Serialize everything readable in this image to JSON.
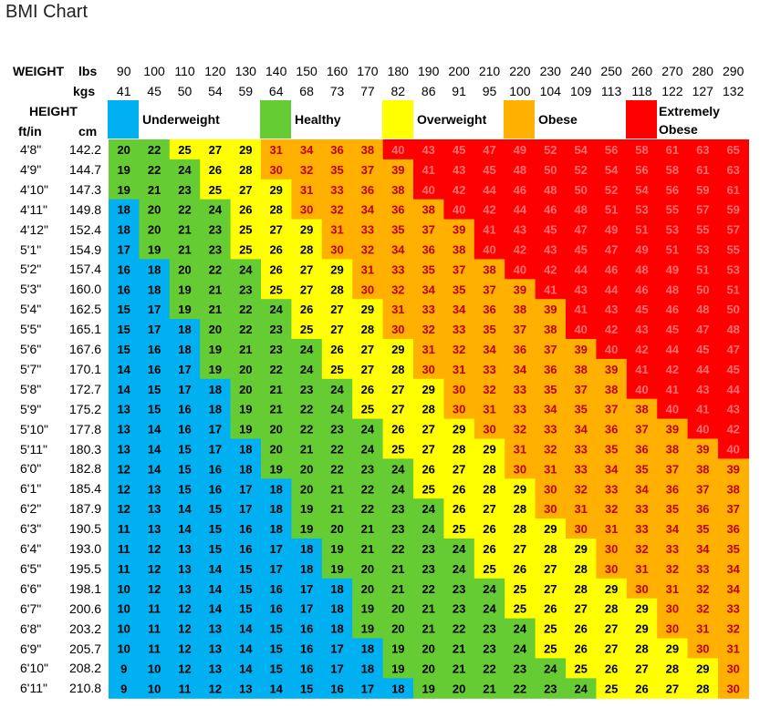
{
  "title": "BMI Chart",
  "header": {
    "weight_label": "WEIGHT",
    "lbs_label": "lbs",
    "kgs_label": "kgs",
    "height_label": "HEIGHT",
    "ftin_label": "ft/in",
    "cm_label": "cm"
  },
  "legend": [
    {
      "label": "Underweight",
      "color": "#00b0f0"
    },
    {
      "label": "Healthy",
      "color": "#66cc33"
    },
    {
      "label": "Overweight",
      "color": "#ffff00"
    },
    {
      "label": "Obese",
      "color": "#ffb000"
    },
    {
      "label": "Extremely Obese",
      "color": "#ff0000"
    }
  ],
  "chart_data": {
    "type": "table",
    "title": "BMI Chart",
    "weights_lbs": [
      "90",
      "100",
      "110",
      "120",
      "130",
      "140",
      "150",
      "160",
      "170",
      "180",
      "190",
      "200",
      "210",
      "220",
      "230",
      "240",
      "250",
      "260",
      "270",
      "280",
      "290"
    ],
    "weights_kgs": [
      "41",
      "45",
      "50",
      "54",
      "59",
      "64",
      "68",
      "73",
      "77",
      "82",
      "86",
      "91",
      "95",
      "100",
      "104",
      "109",
      "113",
      "118",
      "122",
      "127",
      "132"
    ],
    "rows": [
      {
        "ftin": "4'8\"",
        "cm": "142.2",
        "bmi": [
          20,
          22,
          25,
          27,
          29,
          31,
          34,
          36,
          38,
          40,
          43,
          45,
          47,
          49,
          52,
          54,
          56,
          58,
          61,
          63,
          65
        ]
      },
      {
        "ftin": "4'9\"",
        "cm": "144.7",
        "bmi": [
          19,
          22,
          24,
          26,
          28,
          30,
          32,
          35,
          37,
          39,
          41,
          43,
          45,
          48,
          50,
          52,
          54,
          56,
          58,
          61,
          63
        ]
      },
      {
        "ftin": "4'10\"",
        "cm": "147.3",
        "bmi": [
          19,
          21,
          23,
          25,
          27,
          29,
          31,
          33,
          36,
          38,
          40,
          42,
          44,
          46,
          48,
          50,
          52,
          54,
          56,
          59,
          61
        ]
      },
      {
        "ftin": "4'11\"",
        "cm": "149.8",
        "bmi": [
          18,
          20,
          22,
          24,
          26,
          28,
          30,
          32,
          34,
          36,
          38,
          40,
          42,
          44,
          46,
          48,
          51,
          53,
          55,
          57,
          59
        ]
      },
      {
        "ftin": "4'12\"",
        "cm": "152.4",
        "bmi": [
          18,
          20,
          21,
          23,
          25,
          27,
          29,
          31,
          33,
          35,
          37,
          39,
          41,
          43,
          45,
          47,
          49,
          51,
          53,
          55,
          57
        ]
      },
      {
        "ftin": "5'1\"",
        "cm": "154.9",
        "bmi": [
          17,
          19,
          21,
          23,
          25,
          26,
          28,
          30,
          32,
          34,
          36,
          38,
          40,
          42,
          43,
          45,
          47,
          49,
          51,
          53,
          55
        ]
      },
      {
        "ftin": "5'2\"",
        "cm": "157.4",
        "bmi": [
          16,
          18,
          20,
          22,
          24,
          26,
          27,
          29,
          31,
          33,
          35,
          37,
          38,
          40,
          42,
          44,
          46,
          48,
          49,
          51,
          53
        ]
      },
      {
        "ftin": "5'3\"",
        "cm": "160.0",
        "bmi": [
          16,
          18,
          19,
          21,
          23,
          25,
          27,
          28,
          30,
          32,
          34,
          35,
          37,
          39,
          41,
          43,
          44,
          46,
          48,
          50,
          51
        ]
      },
      {
        "ftin": "5'4\"",
        "cm": "162.5",
        "bmi": [
          15,
          17,
          19,
          21,
          22,
          24,
          26,
          27,
          29,
          31,
          33,
          34,
          36,
          38,
          39,
          41,
          43,
          45,
          46,
          48,
          50
        ]
      },
      {
        "ftin": "5'5\"",
        "cm": "165.1",
        "bmi": [
          15,
          17,
          18,
          20,
          22,
          23,
          25,
          27,
          28,
          30,
          32,
          33,
          35,
          37,
          38,
          40,
          42,
          43,
          45,
          47,
          48
        ]
      },
      {
        "ftin": "5'6\"",
        "cm": "167.6",
        "bmi": [
          15,
          16,
          18,
          19,
          21,
          23,
          24,
          26,
          27,
          29,
          31,
          32,
          34,
          36,
          37,
          39,
          40,
          42,
          44,
          45,
          47
        ]
      },
      {
        "ftin": "5'7\"",
        "cm": "170.1",
        "bmi": [
          14,
          16,
          17,
          19,
          20,
          22,
          24,
          25,
          27,
          28,
          30,
          31,
          33,
          34,
          36,
          38,
          39,
          41,
          42,
          44,
          45
        ]
      },
      {
        "ftin": "5'8\"",
        "cm": "172.7",
        "bmi": [
          14,
          15,
          17,
          18,
          20,
          21,
          23,
          24,
          26,
          27,
          29,
          30,
          32,
          33,
          35,
          37,
          38,
          40,
          41,
          43,
          44
        ]
      },
      {
        "ftin": "5'9\"",
        "cm": "175.2",
        "bmi": [
          13,
          15,
          16,
          18,
          19,
          21,
          22,
          24,
          25,
          27,
          28,
          30,
          31,
          33,
          34,
          35,
          37,
          38,
          40,
          41,
          43
        ]
      },
      {
        "ftin": "5'10\"",
        "cm": "177.8",
        "bmi": [
          13,
          14,
          16,
          17,
          19,
          20,
          22,
          23,
          24,
          26,
          27,
          29,
          30,
          32,
          33,
          34,
          36,
          37,
          39,
          40,
          42
        ]
      },
      {
        "ftin": "5'11\"",
        "cm": "180.3",
        "bmi": [
          13,
          14,
          15,
          17,
          18,
          20,
          21,
          22,
          24,
          25,
          27,
          28,
          29,
          31,
          32,
          33,
          35,
          36,
          38,
          39,
          40
        ]
      },
      {
        "ftin": "6'0\"",
        "cm": "182.8",
        "bmi": [
          12,
          14,
          15,
          16,
          18,
          19,
          20,
          22,
          23,
          24,
          26,
          27,
          28,
          30,
          31,
          33,
          34,
          35,
          37,
          38,
          39
        ]
      },
      {
        "ftin": "6'1\"",
        "cm": "185.4",
        "bmi": [
          12,
          13,
          15,
          16,
          17,
          18,
          20,
          21,
          22,
          24,
          25,
          26,
          28,
          29,
          30,
          32,
          33,
          34,
          36,
          37,
          38
        ]
      },
      {
        "ftin": "6'2\"",
        "cm": "187.9",
        "bmi": [
          12,
          13,
          14,
          15,
          17,
          18,
          19,
          21,
          22,
          23,
          24,
          26,
          27,
          28,
          30,
          31,
          32,
          33,
          35,
          36,
          37
        ]
      },
      {
        "ftin": "6'3\"",
        "cm": "190.5",
        "bmi": [
          11,
          13,
          14,
          15,
          16,
          18,
          19,
          20,
          21,
          23,
          24,
          25,
          26,
          28,
          29,
          30,
          31,
          33,
          34,
          35,
          36
        ]
      },
      {
        "ftin": "6'4\"",
        "cm": "193.0",
        "bmi": [
          11,
          12,
          13,
          15,
          16,
          17,
          18,
          19,
          21,
          22,
          23,
          24,
          26,
          27,
          28,
          29,
          30,
          32,
          33,
          34,
          35
        ]
      },
      {
        "ftin": "6'5\"",
        "cm": "195.5",
        "bmi": [
          11,
          12,
          13,
          14,
          15,
          17,
          18,
          19,
          20,
          21,
          23,
          24,
          25,
          26,
          27,
          28,
          30,
          31,
          32,
          33,
          34
        ]
      },
      {
        "ftin": "6'6\"",
        "cm": "198.1",
        "bmi": [
          10,
          12,
          13,
          14,
          15,
          16,
          17,
          18,
          20,
          21,
          22,
          23,
          24,
          25,
          27,
          28,
          29,
          30,
          31,
          32,
          34
        ]
      },
      {
        "ftin": "6'7\"",
        "cm": "200.6",
        "bmi": [
          10,
          11,
          12,
          14,
          15,
          16,
          17,
          18,
          19,
          20,
          21,
          23,
          24,
          25,
          26,
          27,
          28,
          29,
          30,
          32,
          33
        ]
      },
      {
        "ftin": "6'8\"",
        "cm": "203.2",
        "bmi": [
          10,
          11,
          12,
          13,
          14,
          15,
          16,
          18,
          19,
          20,
          21,
          22,
          23,
          24,
          25,
          26,
          27,
          29,
          30,
          31,
          32
        ]
      },
      {
        "ftin": "6'9\"",
        "cm": "205.7",
        "bmi": [
          10,
          11,
          12,
          13,
          14,
          15,
          16,
          17,
          18,
          19,
          20,
          21,
          23,
          24,
          25,
          26,
          27,
          28,
          29,
          30,
          31
        ]
      },
      {
        "ftin": "6'10\"",
        "cm": "208.2",
        "bmi": [
          9,
          10,
          12,
          13,
          14,
          15,
          16,
          17,
          18,
          19,
          20,
          21,
          22,
          23,
          24,
          25,
          26,
          27,
          28,
          29,
          30
        ]
      },
      {
        "ftin": "6'11\"",
        "cm": "210.8",
        "bmi": [
          9,
          10,
          11,
          12,
          13,
          14,
          15,
          16,
          17,
          18,
          19,
          20,
          21,
          22,
          23,
          24,
          25,
          26,
          27,
          28,
          30
        ]
      }
    ]
  }
}
